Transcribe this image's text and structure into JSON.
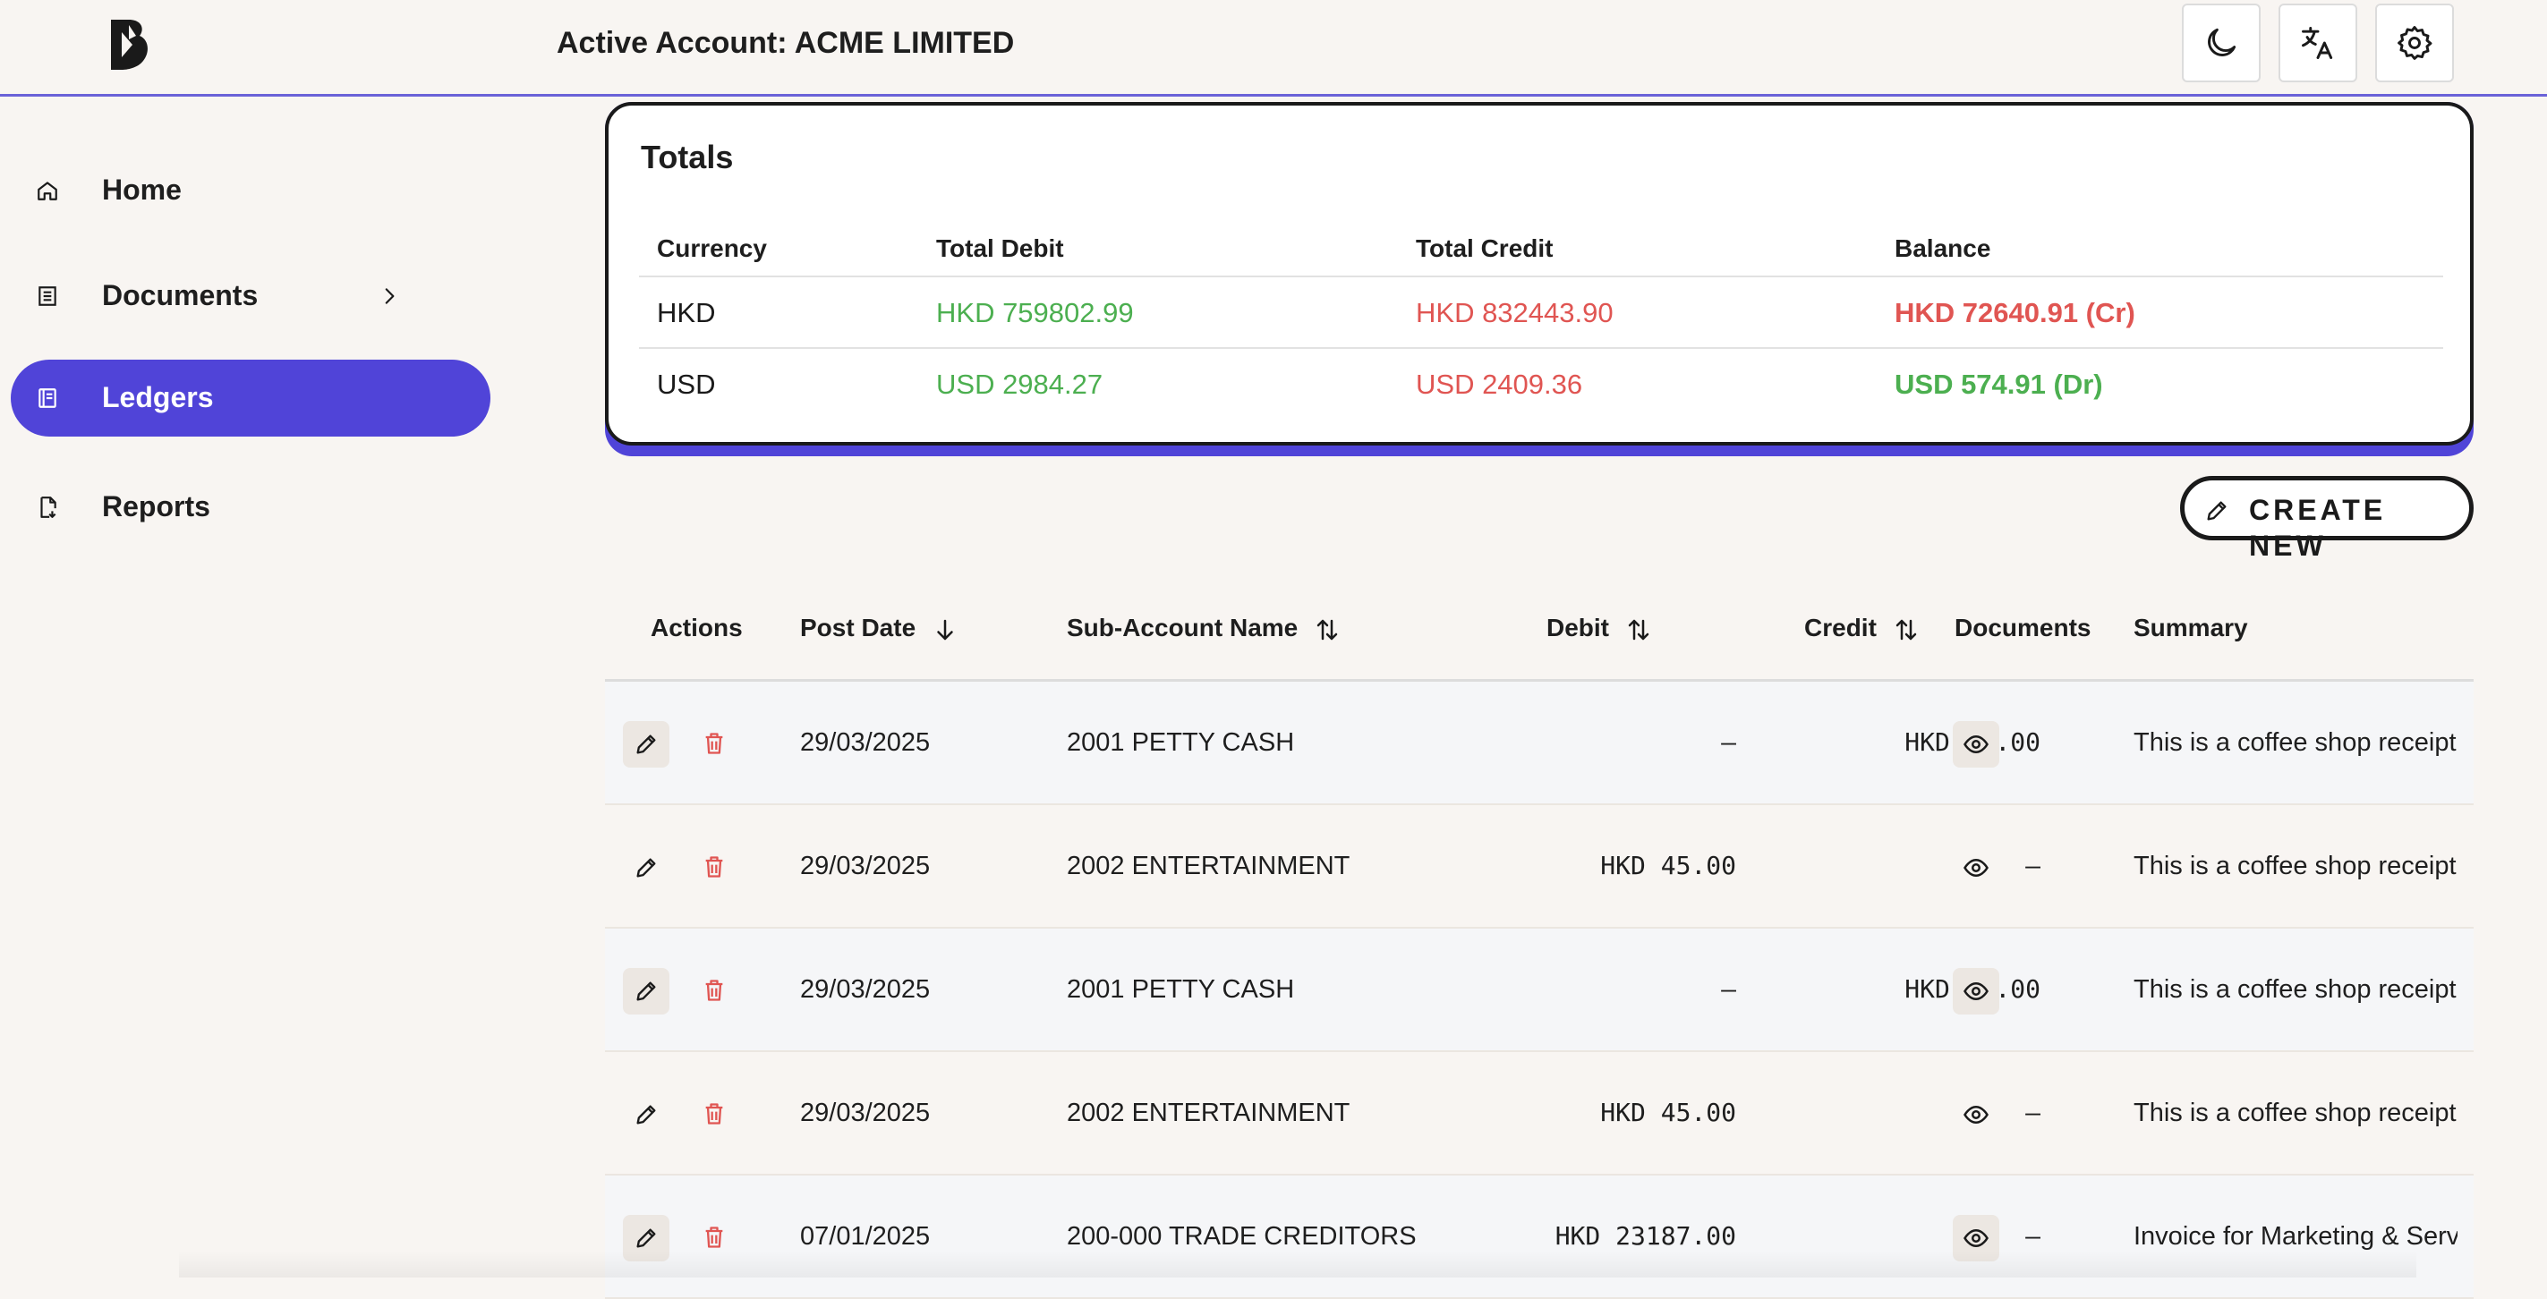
{
  "header": {
    "account_title": "Active Account: ACME LIMITED",
    "buttons": [
      "moon-icon",
      "translate-icon",
      "gear-icon"
    ]
  },
  "sidebar": {
    "items": [
      {
        "label": "Home",
        "icon": "home-icon",
        "active": false
      },
      {
        "label": "Documents",
        "icon": "documents-icon",
        "active": false,
        "has_submenu": true
      },
      {
        "label": "Ledgers",
        "icon": "ledger-icon",
        "active": true
      },
      {
        "label": "Reports",
        "icon": "reports-icon",
        "active": false
      }
    ]
  },
  "totals": {
    "title": "Totals",
    "headers": {
      "currency": "Currency",
      "debit": "Total Debit",
      "credit": "Total Credit",
      "balance": "Balance"
    },
    "rows": [
      {
        "currency": "HKD",
        "debit": "HKD 759802.99",
        "credit": "HKD 832443.90",
        "balance": "HKD 72640.91 (Cr)",
        "balance_status": "credit"
      },
      {
        "currency": "USD",
        "debit": "USD 2984.27",
        "credit": "USD 2409.36",
        "balance": "USD 574.91 (Dr)",
        "balance_status": "debit"
      }
    ]
  },
  "create_new_label": "CREATE NEW",
  "ledger_table": {
    "headers": {
      "actions": "Actions",
      "post_date": "Post Date",
      "sub_account": "Sub-Account Name",
      "debit": "Debit",
      "credit": "Credit",
      "documents": "Documents",
      "summary": "Summary"
    },
    "rows": [
      {
        "post_date": "29/03/2025",
        "sub_account": "2001 PETTY CASH",
        "debit": "–",
        "credit": "HKD 45.00",
        "summary": "This is a coffee shop receipt"
      },
      {
        "post_date": "29/03/2025",
        "sub_account": "2002 ENTERTAINMENT",
        "debit": "HKD 45.00",
        "credit": "–",
        "summary": "This is a coffee shop receipt"
      },
      {
        "post_date": "29/03/2025",
        "sub_account": "2001 PETTY CASH",
        "debit": "–",
        "credit": "HKD 45.00",
        "summary": "This is a coffee shop receipt"
      },
      {
        "post_date": "29/03/2025",
        "sub_account": "2002 ENTERTAINMENT",
        "debit": "HKD 45.00",
        "credit": "–",
        "summary": "This is a coffee shop receipt"
      },
      {
        "post_date": "07/01/2025",
        "sub_account": "200-000 TRADE CREDITORS",
        "debit": "HKD 23187.00",
        "credit": "–",
        "summary": "Invoice for Marketing & Services"
      }
    ]
  },
  "colors": {
    "accent": "#5044d8",
    "debit_green": "#4caf50",
    "credit_red": "#e05552"
  }
}
